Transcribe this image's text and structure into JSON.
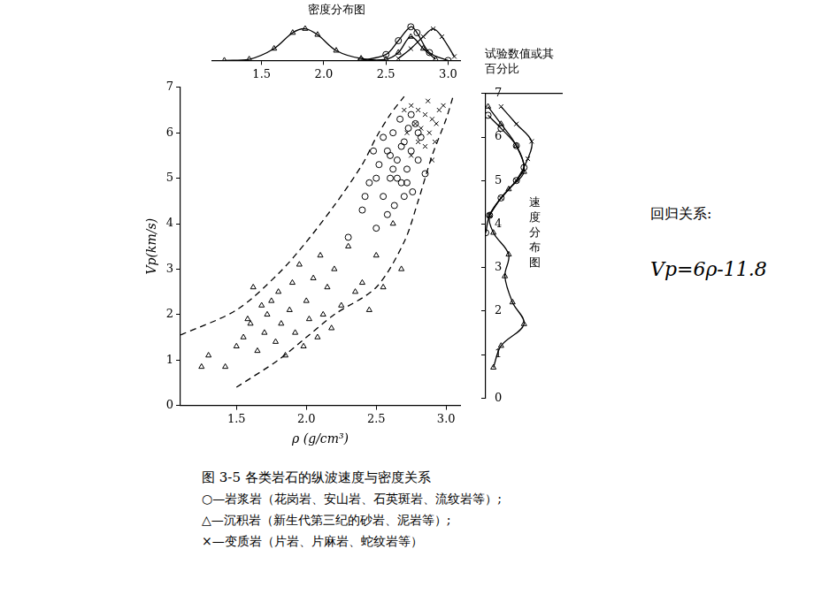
{
  "chart_data": [
    {
      "type": "scatter",
      "title": "图 3-5   各类岩石的纵波速度与密度关系",
      "x_label": "ρ (g/cm³)",
      "y_label": "Vp(km/s)",
      "xlim": [
        1.1,
        3.1
      ],
      "xticks": [
        1.5,
        {
          "value": 2,
          "label": "2.0"
        },
        2.5,
        {
          "value": 3,
          "label": "3.0"
        }
      ],
      "ylim": [
        0,
        7
      ],
      "yticks": [
        0,
        1,
        2,
        3,
        4,
        5,
        6,
        7
      ],
      "grid": false,
      "series": [
        {
          "name": "○—岩浆岩（花岗岩、安山岩、石英斑岩、流纹岩等）;",
          "color": "#000000",
          "marker": "circle",
          "x": [
            2.3,
            2.4,
            2.45,
            2.5,
            2.52,
            2.55,
            2.58,
            2.6,
            2.62,
            2.63,
            2.65,
            2.67,
            2.68,
            2.7,
            2.72,
            2.73,
            2.75,
            2.76,
            2.78,
            2.8,
            2.82,
            2.85,
            2.55,
            2.6,
            2.65,
            2.7,
            2.48,
            2.58,
            2.62,
            2.68,
            2.72,
            2.75,
            2.8,
            2.5,
            2.42
          ],
          "values": [
            3.7,
            4.3,
            4.9,
            3.9,
            5.3,
            4.6,
            5.6,
            5.0,
            6.0,
            4.4,
            5.4,
            6.3,
            4.9,
            5.8,
            5.2,
            6.1,
            5.6,
            4.7,
            6.2,
            5.4,
            5.9,
            5.1,
            5.9,
            5.5,
            5.0,
            4.6,
            5.6,
            4.2,
            5.2,
            5.7,
            4.9,
            6.4,
            6.0,
            5.0,
            4.6
          ]
        },
        {
          "name": "△—沉积岩（新生代第三纪的砂岩、泥岩等）;",
          "color": "#000000",
          "marker": "triangle",
          "x": [
            1.25,
            1.3,
            1.42,
            1.5,
            1.55,
            1.6,
            1.62,
            1.65,
            1.7,
            1.72,
            1.75,
            1.78,
            1.8,
            1.82,
            1.85,
            1.88,
            1.9,
            1.92,
            1.95,
            1.98,
            2.0,
            2.02,
            2.05,
            2.08,
            2.1,
            2.12,
            2.15,
            2.18,
            2.2,
            2.25,
            2.3,
            2.35,
            2.4,
            2.45,
            2.5,
            2.55,
            2.62,
            2.68,
            1.68,
            1.58
          ],
          "values": [
            0.85,
            1.1,
            0.85,
            1.3,
            1.5,
            1.8,
            2.6,
            1.2,
            1.6,
            2.0,
            2.3,
            1.4,
            2.5,
            1.8,
            1.1,
            2.1,
            2.7,
            1.6,
            3.1,
            1.3,
            2.3,
            1.9,
            2.8,
            1.5,
            3.3,
            2.0,
            2.6,
            1.7,
            3.0,
            2.2,
            3.5,
            2.5,
            2.7,
            2.1,
            3.3,
            2.6,
            4.0,
            3.0,
            2.2,
            1.9
          ]
        },
        {
          "name": "×—变质岩（片岩、片麻岩、蛇纹岩等）",
          "color": "#000000",
          "marker": "cross",
          "x": [
            2.7,
            2.75,
            2.8,
            2.85,
            2.9,
            2.78,
            2.82,
            2.88,
            2.92,
            2.95,
            2.85,
            2.9,
            2.8,
            2.72,
            2.98,
            2.75,
            2.87,
            2.93
          ],
          "values": [
            6.5,
            6.6,
            6.5,
            6.4,
            6.3,
            6.2,
            6.1,
            6.0,
            5.8,
            6.5,
            5.7,
            5.4,
            5.8,
            6.0,
            6.6,
            5.5,
            6.7,
            6.2
          ]
        },
        {
          "type": "line",
          "line_style": "dashed",
          "color": "#000000",
          "x": [
            1.1,
            1.5,
            1.8,
            2.0,
            2.2,
            2.4,
            2.5,
            2.6,
            2.7
          ],
          "values": [
            1.55,
            2.1,
            2.9,
            3.6,
            4.4,
            5.3,
            5.9,
            6.4,
            6.8
          ]
        },
        {
          "type": "line",
          "line_style": "dashed",
          "color": "#000000",
          "x": [
            1.5,
            1.8,
            2.0,
            2.2,
            2.5,
            2.7,
            2.8,
            2.9,
            3.0,
            3.05
          ],
          "values": [
            0.4,
            1.0,
            1.5,
            2.0,
            2.6,
            3.6,
            4.5,
            5.5,
            6.3,
            6.8
          ]
        }
      ]
    },
    {
      "type": "line",
      "title": "密度分布图",
      "xlim": [
        1.1,
        3.1
      ],
      "xticks": [
        1.5,
        {
          "value": 2,
          "label": "2.0"
        },
        2.5,
        {
          "value": 3,
          "label": "3.0"
        }
      ],
      "ylim": [
        0,
        10
      ],
      "tick_labels": "x",
      "grid": false,
      "series": [
        {
          "color": "#000000",
          "marker": "triangle",
          "line_style": "solid",
          "x": [
            1.2,
            1.4,
            1.6,
            1.75,
            1.85,
            1.95,
            2.1,
            2.3,
            2.5,
            2.6,
            2.7,
            2.8,
            2.9
          ],
          "values": [
            0,
            0.3,
            3,
            7,
            8,
            6.5,
            2.5,
            0.5,
            0.3,
            2,
            6,
            3,
            0.3
          ]
        },
        {
          "color": "#000000",
          "marker": "circle",
          "line_style": "solid",
          "x": [
            2.3,
            2.5,
            2.6,
            2.7,
            2.75,
            2.85,
            3.0
          ],
          "values": [
            0,
            1.5,
            5,
            8.5,
            7,
            2,
            0
          ]
        },
        {
          "color": "#000000",
          "marker": "cross",
          "line_style": "solid",
          "x": [
            2.6,
            2.7,
            2.8,
            2.88,
            2.95,
            3.05
          ],
          "values": [
            0.5,
            3,
            6,
            8,
            6,
            1
          ]
        }
      ]
    },
    {
      "type": "line",
      "title": "速度分布图",
      "x_label": "试验数值或其百分比",
      "xlim": [
        0,
        10
      ],
      "ylim": [
        0,
        7
      ],
      "yticks": [
        0,
        1,
        2,
        3,
        4,
        5,
        6,
        7
      ],
      "tick_labels": "y",
      "grid": false,
      "series": [
        {
          "color": "#000000",
          "marker": "triangle",
          "line_style": "solid",
          "x": [
            1,
            2,
            5,
            3.5,
            2.5,
            3,
            1,
            0.5,
            3,
            5,
            4,
            2,
            0.3
          ],
          "values": [
            0.7,
            1.2,
            1.7,
            2.2,
            2.8,
            3.3,
            3.8,
            4.2,
            4.8,
            5.2,
            5.8,
            6.3,
            6.7
          ]
        },
        {
          "color": "#000000",
          "marker": "circle",
          "line_style": "solid",
          "x": [
            0,
            0.5,
            2,
            4,
            5,
            4,
            2,
            0.3
          ],
          "values": [
            3.8,
            4.2,
            4.6,
            5.0,
            5.3,
            5.8,
            6.2,
            6.5
          ]
        },
        {
          "color": "#000000",
          "marker": "cross",
          "line_style": "solid",
          "x": [
            0.5,
            2,
            4,
            5.5,
            6,
            4,
            2
          ],
          "values": [
            4.2,
            4.6,
            5.0,
            5.5,
            5.9,
            6.3,
            6.7
          ]
        }
      ]
    }
  ],
  "regression": {
    "label": "回归关系:",
    "formula": "Vp=6ρ-11.8"
  }
}
